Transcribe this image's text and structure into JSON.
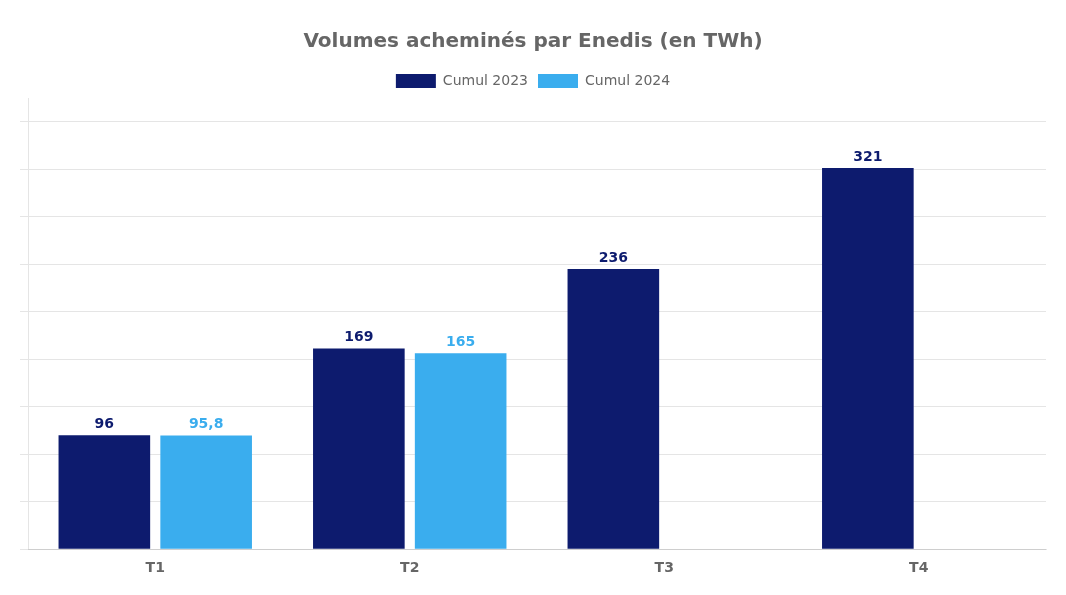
{
  "chart_data": {
    "type": "bar",
    "title": "Volumes acheminés par Enedis (en TWh)",
    "categories": [
      "T1",
      "T2",
      "T3",
      "T4"
    ],
    "series": [
      {
        "name": "Cumul 2023",
        "color": "#0D1B6E",
        "values": [
          96,
          169,
          236,
          321
        ]
      },
      {
        "name": "Cumul 2024",
        "color": "#3AADEE",
        "values": [
          95.8,
          165,
          null,
          null
        ],
        "value_labels": [
          "95,8",
          "165",
          null,
          null
        ]
      }
    ],
    "ylim": [
      0,
      380
    ],
    "yticks": [
      0,
      40,
      80,
      120,
      160,
      200,
      240,
      280,
      320,
      360
    ],
    "grid": true,
    "legend": "top",
    "data_labels": true,
    "tick_labels": "x"
  }
}
